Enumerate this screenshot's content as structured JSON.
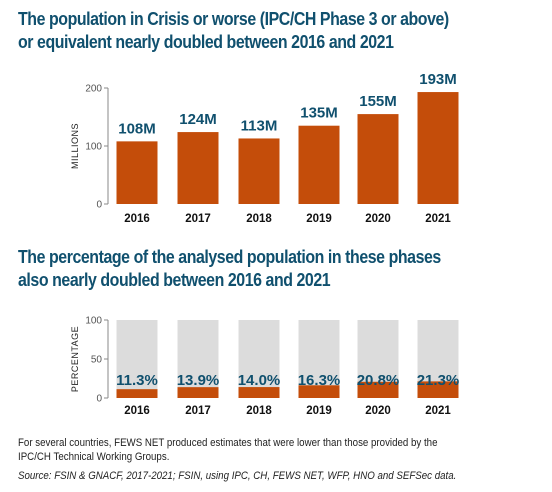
{
  "chart_data": [
    {
      "type": "bar",
      "title": "The population in Crisis or worse (IPC/CH Phase 3 or above) or equivalent nearly doubled between 2016 and 2021",
      "ylabel": "MILLIONS",
      "categories": [
        "2016",
        "2017",
        "2018",
        "2019",
        "2020",
        "2021"
      ],
      "values": [
        108,
        124,
        113,
        135,
        155,
        193
      ],
      "data_labels": [
        "108M",
        "124M",
        "113M",
        "135M",
        "155M",
        "193M"
      ],
      "yticks": [
        0,
        100,
        200
      ],
      "ylim": [
        0,
        200
      ],
      "grid": false,
      "color": "#c44d0a"
    },
    {
      "type": "bar",
      "title": "The percentage of the analysed population in these phases also nearly doubled between 2016 and 2021",
      "ylabel": "PERCENTAGE",
      "categories": [
        "2016",
        "2017",
        "2018",
        "2019",
        "2020",
        "2021"
      ],
      "values": [
        11.3,
        13.9,
        14.0,
        16.3,
        20.8,
        21.3
      ],
      "data_labels": [
        "11.3%",
        "13.9%",
        "14.0%",
        "16.3%",
        "20.8%",
        "21.3%"
      ],
      "yticks": [
        0,
        50,
        100
      ],
      "ylim": [
        0,
        100
      ],
      "grid": false,
      "color": "#c44d0a",
      "background_color": "#dcdcdc"
    }
  ],
  "notes": [
    "For several countries, FEWS NET produced estimates that were lower than those provided by the",
    "IPC/CH Technical Working Groups."
  ],
  "source": "Source: FSIN & GNACF, 2017-2021; FSIN, using IPC, CH, FEWS NET, WFP, HNO and SEFSec data."
}
